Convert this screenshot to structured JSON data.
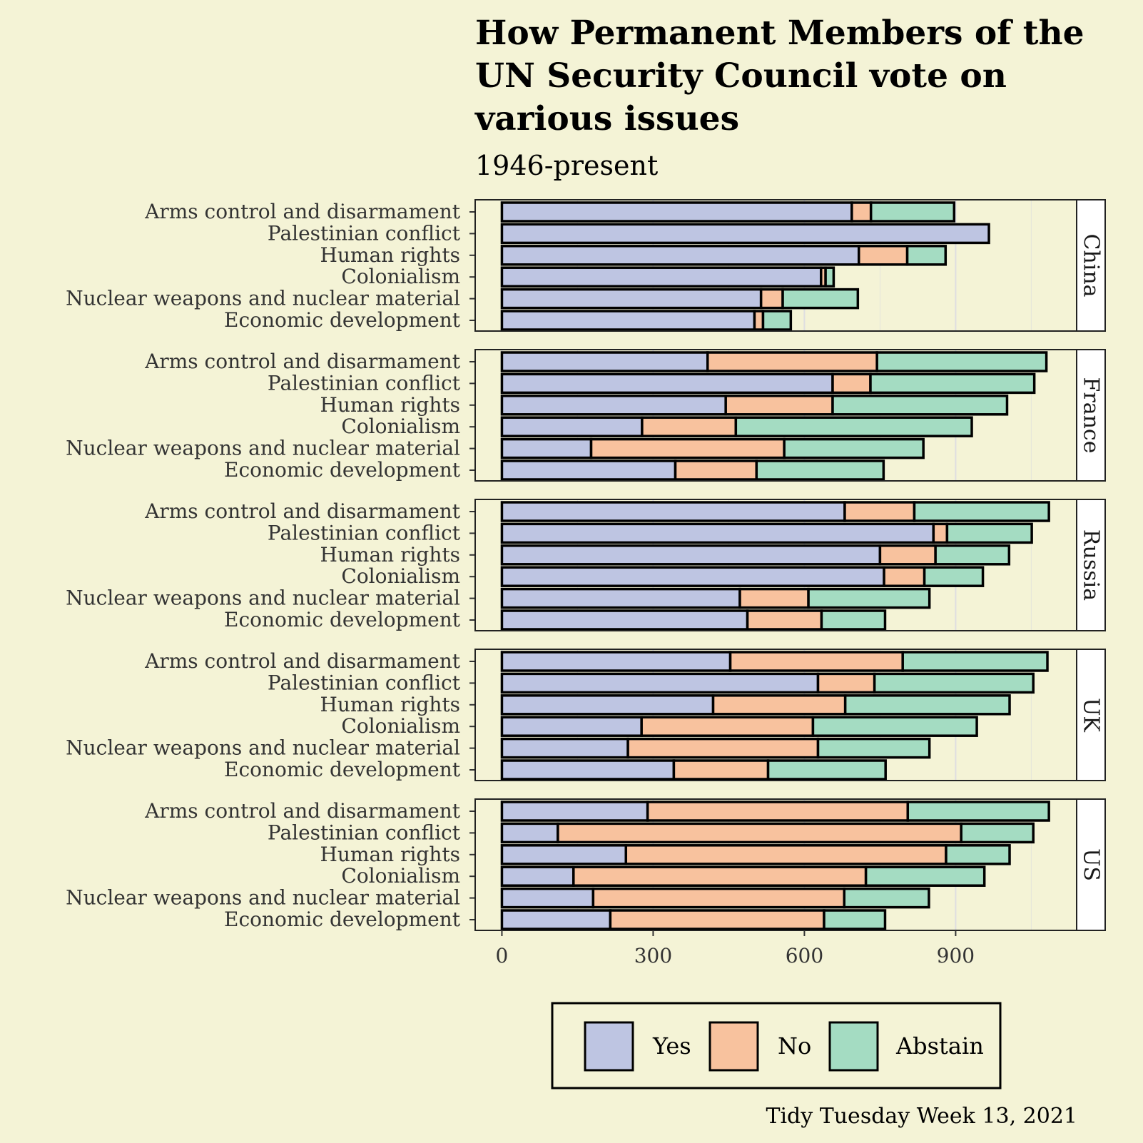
{
  "chart_data": {
    "type": "bar",
    "orientation": "horizontal",
    "stacked": true,
    "title": "How Permanent Members of the UN Security Council vote on various issues",
    "title_lines": [
      "How Permanent Members of the",
      "UN Security Council vote on",
      "various issues"
    ],
    "subtitle": "1946-present",
    "caption": "Tidy Tuesday Week 13, 2021",
    "categories": [
      "Arms control and disarmament",
      "Palestinian conflict",
      "Human rights",
      "Colonialism",
      "Nuclear weapons and nuclear material",
      "Economic development"
    ],
    "series": [
      {
        "name": "Yes",
        "color": "#bec5e2"
      },
      {
        "name": "No",
        "color": "#f8c29e"
      },
      {
        "name": "Abstain",
        "color": "#a4dcc2"
      }
    ],
    "facets": [
      {
        "name": "China",
        "values": {
          "Yes": [
            694,
            966,
            708,
            633,
            514,
            501
          ],
          "No": [
            38,
            0,
            96,
            9,
            43,
            17
          ],
          "Abstain": [
            165,
            0,
            76,
            16,
            149,
            55
          ]
        }
      },
      {
        "name": "France",
        "values": {
          "Yes": [
            408,
            656,
            444,
            278,
            177,
            344
          ],
          "No": [
            336,
            75,
            212,
            186,
            383,
            161
          ],
          "Abstain": [
            336,
            325,
            346,
            468,
            276,
            252
          ]
        }
      },
      {
        "name": "Russia",
        "values": {
          "Yes": [
            680,
            856,
            750,
            758,
            472,
            487
          ],
          "No": [
            138,
            27,
            110,
            80,
            136,
            147
          ],
          "Abstain": [
            267,
            168,
            146,
            116,
            240,
            126
          ]
        }
      },
      {
        "name": "UK",
        "values": {
          "Yes": [
            453,
            627,
            419,
            277,
            250,
            341
          ],
          "No": [
            342,
            112,
            262,
            340,
            377,
            187
          ],
          "Abstain": [
            287,
            315,
            326,
            325,
            221,
            233
          ]
        }
      },
      {
        "name": "US",
        "values": {
          "Yes": [
            289,
            111,
            246,
            142,
            181,
            215
          ],
          "No": [
            516,
            800,
            635,
            580,
            498,
            424
          ],
          "Abstain": [
            280,
            143,
            126,
            235,
            168,
            121
          ]
        }
      }
    ],
    "x_ticks": [
      0,
      300,
      600,
      900
    ],
    "xlim": [
      -53,
      1140
    ],
    "grid": true,
    "legend_position": "bottom"
  }
}
